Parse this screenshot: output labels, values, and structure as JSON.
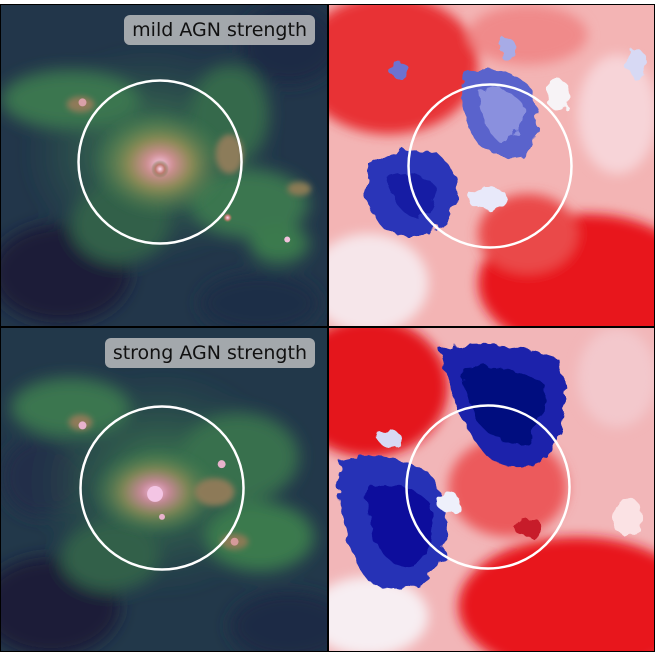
{
  "panels": [
    {
      "row": 0,
      "label": "mild AGN strength"
    },
    {
      "row": 1,
      "label": "strong AGN strength"
    }
  ],
  "colors": {
    "density_low": "#1c1f3a",
    "density_mid": "#3b7a4e",
    "density_high": "#c98a7a",
    "density_peak": "#f4c6e6",
    "velocity_positive": "#e8141a",
    "velocity_zero": "#ffffff",
    "velocity_negative": "#0a0f9c",
    "aperture_circle": "#ffffff"
  }
}
